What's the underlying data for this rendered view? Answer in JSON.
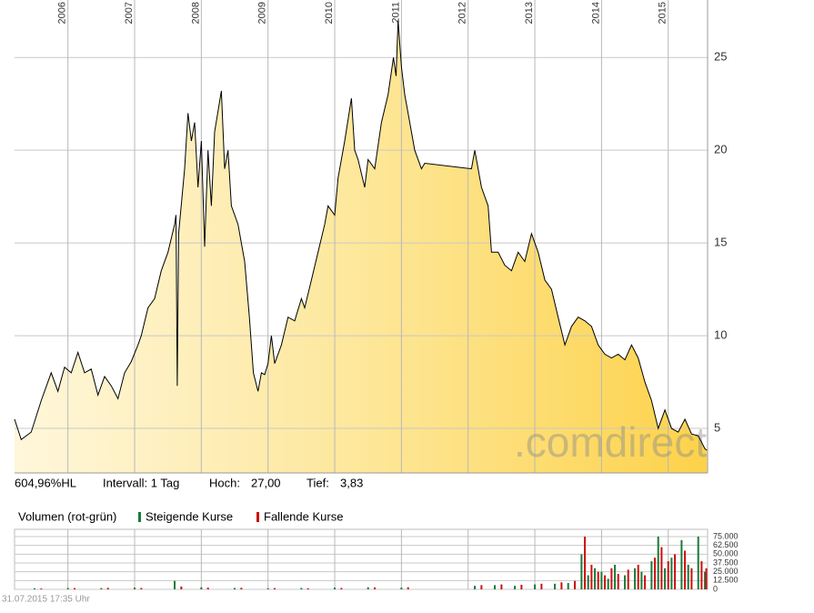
{
  "chart_data": [
    {
      "type": "area",
      "annotations": [
        "604,96%HL",
        "Intervall: 1 Tag",
        "Hoch:",
        "27,00",
        "Tief:",
        "3,83"
      ],
      "watermark": ".comdirect",
      "color": "#000000",
      "x": [
        2005.2,
        2005.3,
        2005.45,
        2005.6,
        2005.75,
        2005.85,
        2005.95,
        2006.05,
        2006.15,
        2006.25,
        2006.35,
        2006.45,
        2006.55,
        2006.65,
        2006.75,
        2006.85,
        2006.95,
        2007.05,
        2007.1,
        2007.2,
        2007.3,
        2007.4,
        2007.5,
        2007.6,
        2007.62,
        2007.64,
        2007.66,
        2007.75,
        2007.8,
        2007.85,
        2007.9,
        2007.95,
        2008.0,
        2008.05,
        2008.1,
        2008.15,
        2008.2,
        2008.3,
        2008.35,
        2008.4,
        2008.45,
        2008.55,
        2008.65,
        2008.72,
        2008.78,
        2008.85,
        2008.9,
        2008.95,
        2009.0,
        2009.05,
        2009.1,
        2009.2,
        2009.3,
        2009.4,
        2009.5,
        2009.55,
        2009.65,
        2009.75,
        2009.85,
        2009.9,
        2010.0,
        2010.05,
        2010.15,
        2010.25,
        2010.3,
        2010.35,
        2010.45,
        2010.5,
        2010.6,
        2010.7,
        2010.8,
        2010.88,
        2010.92,
        2010.95,
        2011.0,
        2011.05,
        2011.1,
        2011.2,
        2011.3,
        2011.35,
        2012.05,
        2012.1,
        2012.2,
        2012.3,
        2012.35,
        2012.45,
        2012.55,
        2012.65,
        2012.75,
        2012.85,
        2012.95,
        2013.05,
        2013.15,
        2013.25,
        2013.35,
        2013.45,
        2013.55,
        2013.65,
        2013.75,
        2013.85,
        2013.95,
        2014.05,
        2014.15,
        2014.25,
        2014.35,
        2014.45,
        2014.55,
        2014.65,
        2014.75,
        2014.85,
        2014.95,
        2015.05,
        2015.15,
        2015.25,
        2015.35,
        2015.45,
        2015.55,
        2015.58
      ],
      "values": [
        5.5,
        4.4,
        4.8,
        6.5,
        8.0,
        7.0,
        8.3,
        8.0,
        9.1,
        8.0,
        8.2,
        6.8,
        7.8,
        7.3,
        6.6,
        8.0,
        8.6,
        9.5,
        10.0,
        11.5,
        12.0,
        13.5,
        14.5,
        16.0,
        16.5,
        7.3,
        15.5,
        19.0,
        22.0,
        20.5,
        21.5,
        18.0,
        20.5,
        14.8,
        20.0,
        17.0,
        21.0,
        23.2,
        19.0,
        20.0,
        17.0,
        16.0,
        14.0,
        11.0,
        8.0,
        7.0,
        8.0,
        7.9,
        8.5,
        10.0,
        8.5,
        9.5,
        11.0,
        10.8,
        12.0,
        11.5,
        13.0,
        14.5,
        16.0,
        17.0,
        16.5,
        18.5,
        20.5,
        22.8,
        20.0,
        19.5,
        18.0,
        19.5,
        19.0,
        21.5,
        23.0,
        25.0,
        24.0,
        27.0,
        24.5,
        23.0,
        22.0,
        20.0,
        19.0,
        19.3,
        19.0,
        20.0,
        18.0,
        17.0,
        14.5,
        14.5,
        13.8,
        13.5,
        14.5,
        14.0,
        15.5,
        14.5,
        13.0,
        12.5,
        11.0,
        9.5,
        10.5,
        11.0,
        10.8,
        10.5,
        9.5,
        9.0,
        8.8,
        9.0,
        8.7,
        9.5,
        8.8,
        7.5,
        6.5,
        5.0,
        6.0,
        5.0,
        4.8,
        5.5,
        4.7,
        4.6,
        3.9,
        3.83
      ],
      "xlim": [
        2005.2,
        2015.59
      ],
      "xticks": [
        2006,
        2007,
        2008,
        2009,
        2010,
        2011,
        2012,
        2013,
        2014,
        2015
      ],
      "ylim": [
        2.6,
        28.1
      ],
      "yticks": [
        5,
        10,
        15,
        20,
        25
      ],
      "grid": true
    },
    {
      "type": "bar",
      "title": "Volumen (rot-grün)",
      "footer": "31.07.2015 17:35 Uhr",
      "xlim": [
        2005.2,
        2015.59
      ],
      "xticks": [
        2006,
        2007,
        2008,
        2009,
        2010,
        2011,
        2012,
        2013,
        2014,
        2015
      ],
      "ylim": [
        0,
        75000
      ],
      "yticks": [
        {
          "value": 75000,
          "label": "75.000"
        },
        {
          "value": 62500,
          "label": "62.500"
        },
        {
          "value": 50000,
          "label": "50.000"
        },
        {
          "value": 37500,
          "label": "37.500"
        },
        {
          "value": 25000,
          "label": "25.000"
        },
        {
          "value": 12500,
          "label": "12.500"
        },
        0
      ],
      "grid": true,
      "series": [
        {
          "name": "Steigende Kurse",
          "color": "#1a7a3a",
          "x": [
            2005.5,
            2006.0,
            2006.5,
            2007.0,
            2007.6,
            2008.0,
            2008.5,
            2009.0,
            2009.5,
            2010.0,
            2010.5,
            2011.0,
            2012.1,
            2012.4,
            2012.7,
            2013.0,
            2013.3,
            2013.5,
            2013.7,
            2013.8,
            2013.9,
            2014.0,
            2014.1,
            2014.2,
            2014.35,
            2014.5,
            2014.6,
            2014.75,
            2014.85,
            2014.95,
            2015.05,
            2015.2,
            2015.3,
            2015.45,
            2015.55
          ],
          "values": [
            1500,
            2000,
            1800,
            2500,
            12000,
            3000,
            2000,
            1500,
            2000,
            2500,
            3000,
            2500,
            5000,
            6000,
            5000,
            7000,
            8000,
            9000,
            50000,
            20000,
            30000,
            25000,
            15000,
            35000,
            20000,
            30000,
            25000,
            40000,
            75000,
            30000,
            45000,
            70000,
            35000,
            75000,
            25000
          ]
        },
        {
          "name": "Fallende Kurse",
          "color": "#cc1010",
          "x": [
            2005.6,
            2006.1,
            2006.6,
            2007.1,
            2007.7,
            2008.1,
            2008.6,
            2009.1,
            2009.6,
            2010.1,
            2010.6,
            2011.1,
            2012.2,
            2012.5,
            2012.8,
            2013.1,
            2013.4,
            2013.6,
            2013.75,
            2013.85,
            2013.95,
            2014.05,
            2014.15,
            2014.25,
            2014.4,
            2014.55,
            2014.65,
            2014.8,
            2014.9,
            2015.0,
            2015.1,
            2015.25,
            2015.35,
            2015.5,
            2015.57
          ],
          "values": [
            1200,
            1800,
            2200,
            2000,
            4000,
            2500,
            2200,
            1800,
            1600,
            2000,
            2800,
            3000,
            6000,
            7000,
            6500,
            8000,
            10000,
            12000,
            75000,
            35000,
            25000,
            20000,
            30000,
            22000,
            28000,
            35000,
            20000,
            45000,
            60000,
            40000,
            50000,
            55000,
            30000,
            40000,
            30000
          ]
        }
      ]
    }
  ]
}
